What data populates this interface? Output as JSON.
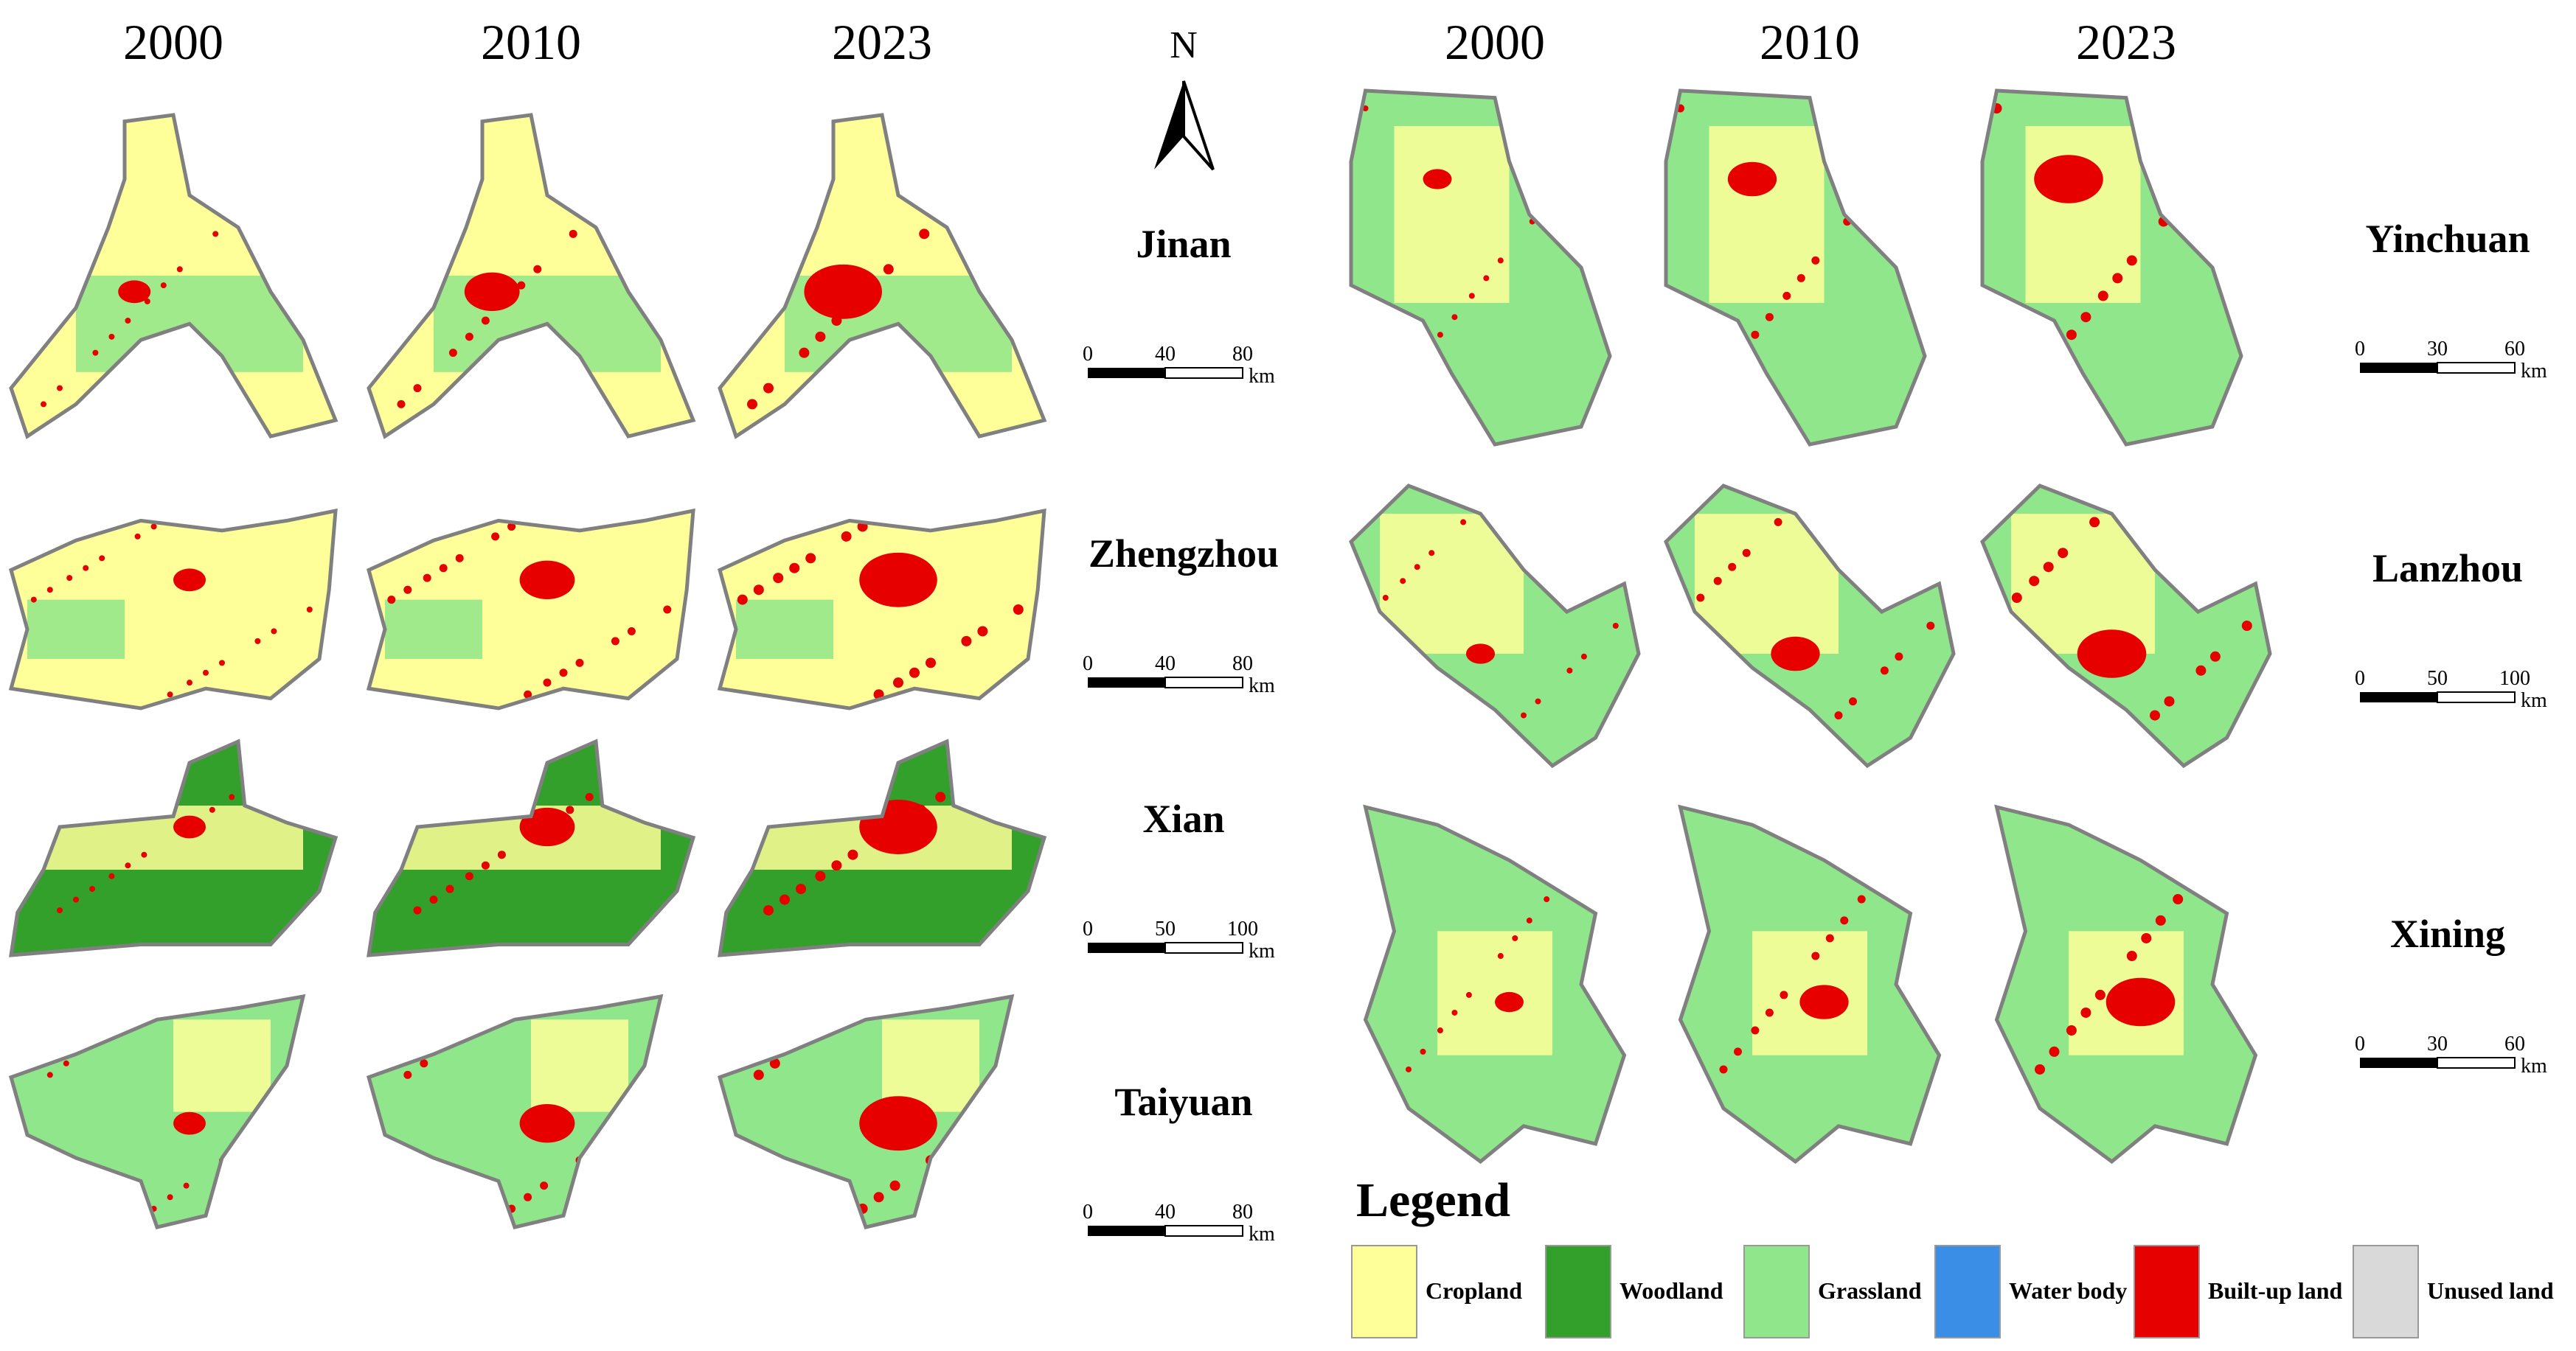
{
  "north_arrow": "N",
  "left_panel": {
    "years": [
      "2000",
      "2010",
      "2023"
    ],
    "cities": [
      {
        "name": "Jinan",
        "scale_labels": [
          "0",
          "40",
          "80"
        ],
        "unit": "km"
      },
      {
        "name": "Zhengzhou",
        "scale_labels": [
          "0",
          "40",
          "80"
        ],
        "unit": "km"
      },
      {
        "name": "Xian",
        "scale_labels": [
          "0",
          "50",
          "100"
        ],
        "unit": "km"
      },
      {
        "name": "Taiyuan",
        "scale_labels": [
          "0",
          "40",
          "80"
        ],
        "unit": "km"
      }
    ]
  },
  "right_panel": {
    "years": [
      "2000",
      "2010",
      "2023"
    ],
    "cities": [
      {
        "name": "Yinchuan",
        "scale_labels": [
          "0",
          "30",
          "60"
        ],
        "unit": "km"
      },
      {
        "name": "Lanzhou",
        "scale_labels": [
          "0",
          "50",
          "100"
        ],
        "unit": "km"
      },
      {
        "name": "Xining",
        "scale_labels": [
          "0",
          "30",
          "60"
        ],
        "unit": "km"
      }
    ]
  },
  "legend": {
    "title": "Legend",
    "items": [
      {
        "label": "Cropland",
        "color": "#ffff99"
      },
      {
        "label": "Woodland",
        "color": "#33a02c"
      },
      {
        "label": "Grassland",
        "color": "#90e68a"
      },
      {
        "label": "Water body",
        "color": "#3a8ee6"
      },
      {
        "label": "Built-up land",
        "color": "#e60000"
      },
      {
        "label": "Unused land",
        "color": "#d9d9d9"
      }
    ]
  }
}
